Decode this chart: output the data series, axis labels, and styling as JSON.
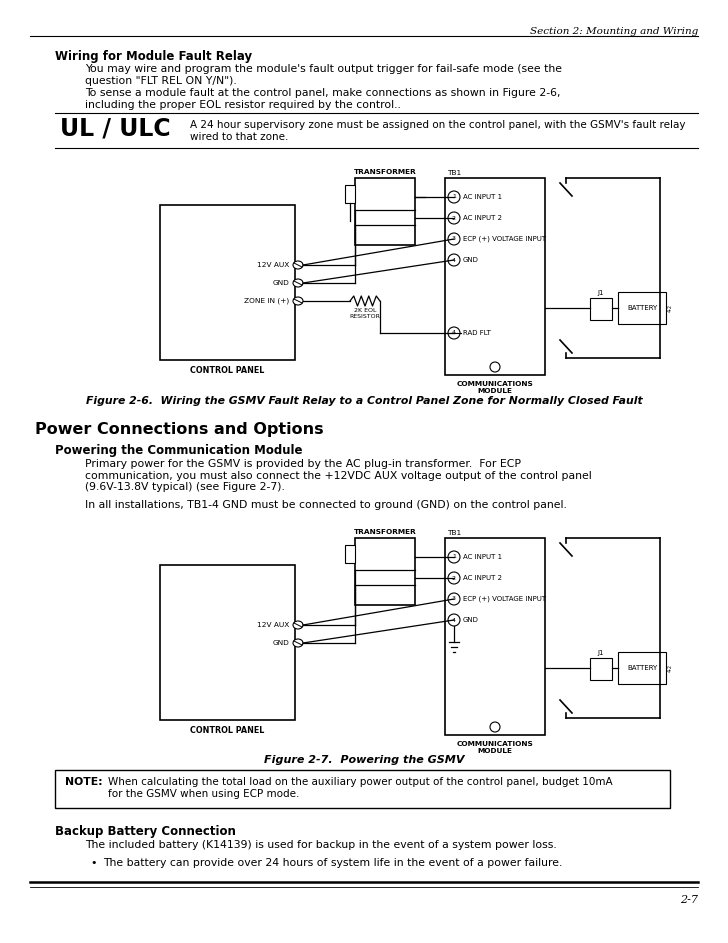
{
  "page_number": "2-7",
  "header_text": "Section 2: Mounting and Wiring",
  "section1_heading": "Wiring for Module Fault Relay",
  "section1_para1": "You may wire and program the module's fault output trigger for fail-safe mode (see the\nquestion \"FLT REL ON Y/N\").",
  "section1_para2": "To sense a module fault at the control panel, make connections as shown in Figure 2-6,\nincluding the proper EOL resistor required by the control..",
  "ul_ulc_label": "UL / ULC",
  "ul_ulc_text": "A 24 hour supervisory zone must be assigned on the control panel, with the GSMV's fault relay\nwired to that zone.",
  "fig1_caption": "Figure 2-6.  Wiring the GSMV Fault Relay to a Control Panel Zone for Normally Closed Fault",
  "section2_heading": "Power Connections and Options",
  "section2_subheading": "Powering the Communication Module",
  "section2_para1": "Primary power for the GSMV is provided by the AC plug-in transformer.  For ECP\ncommunication, you must also connect the +12VDC AUX voltage output of the control panel\n(9.6V-13.8V typical) (see Figure 2-7).",
  "section2_para2": "In all installations, TB1-4 GND must be connected to ground (GND) on the control panel.",
  "fig2_caption": "Figure 2-7.  Powering the GSMV",
  "note_label": "NOTE:",
  "note_text": "When calculating the total load on the auxiliary power output of the control panel, budget 10mA\nfor the GSMV when using ECP mode.",
  "section3_heading": "Backup Battery Connection",
  "section3_para1": "The included battery (K14139) is used for backup in the event of a system power loss.",
  "section3_bullet1": "The battery can provide over 24 hours of system life in the event of a power failure.",
  "bg_color": "#ffffff",
  "text_color": "#000000"
}
